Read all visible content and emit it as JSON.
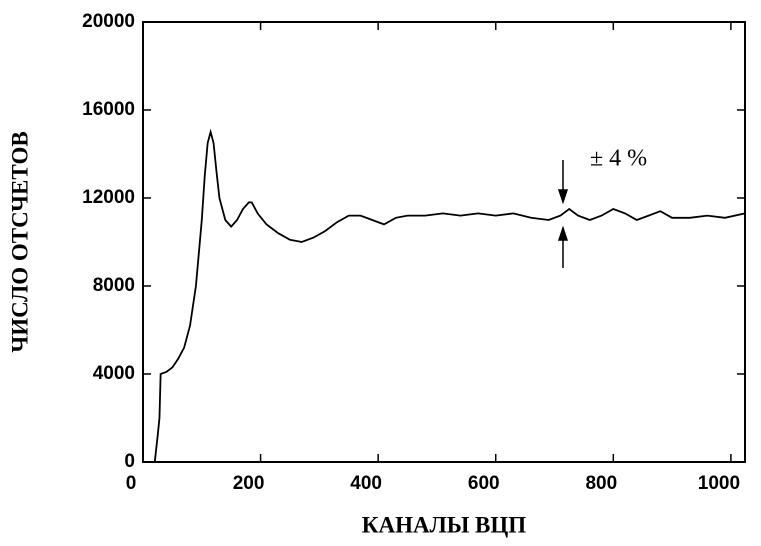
{
  "chart_data": {
    "type": "line",
    "xlabel": "КАНАЛЫ ВЦП",
    "ylabel": "ЧИСЛО ОТСЧЕТОВ",
    "annotation": "± 4 %",
    "x": [
      10,
      20,
      25,
      28,
      30,
      40,
      50,
      60,
      70,
      80,
      90,
      100,
      105,
      110,
      115,
      120,
      125,
      130,
      140,
      150,
      160,
      170,
      180,
      185,
      195,
      210,
      230,
      250,
      270,
      290,
      310,
      330,
      350,
      370,
      390,
      410,
      430,
      450,
      480,
      510,
      540,
      570,
      600,
      630,
      660,
      690,
      710,
      725,
      740,
      760,
      780,
      800,
      820,
      840,
      860,
      880,
      900,
      930,
      960,
      990,
      1024
    ],
    "series": [
      {
        "name": "counts",
        "color": "#000000",
        "values": [
          0,
          0,
          1200,
          2000,
          4000,
          4100,
          4300,
          4700,
          5200,
          6200,
          8000,
          11000,
          13000,
          14500,
          15000,
          14500,
          13200,
          12000,
          11000,
          10700,
          11000,
          11500,
          11800,
          11800,
          11300,
          10800,
          10400,
          10100,
          10000,
          10200,
          10500,
          10900,
          11200,
          11200,
          11000,
          10800,
          11100,
          11200,
          11200,
          11300,
          11200,
          11300,
          11200,
          11300,
          11100,
          11000,
          11200,
          11500,
          11200,
          11000,
          11200,
          11500,
          11300,
          11000,
          11200,
          11400,
          11100,
          11100,
          11200,
          11100,
          11300
        ]
      }
    ],
    "xlim": [
      0,
      1024
    ],
    "xticks": [
      0,
      200,
      400,
      600,
      800,
      1000
    ],
    "ylim": [
      0,
      20000
    ],
    "yticks": [
      0,
      4000,
      8000,
      12000,
      16000,
      20000
    ]
  }
}
